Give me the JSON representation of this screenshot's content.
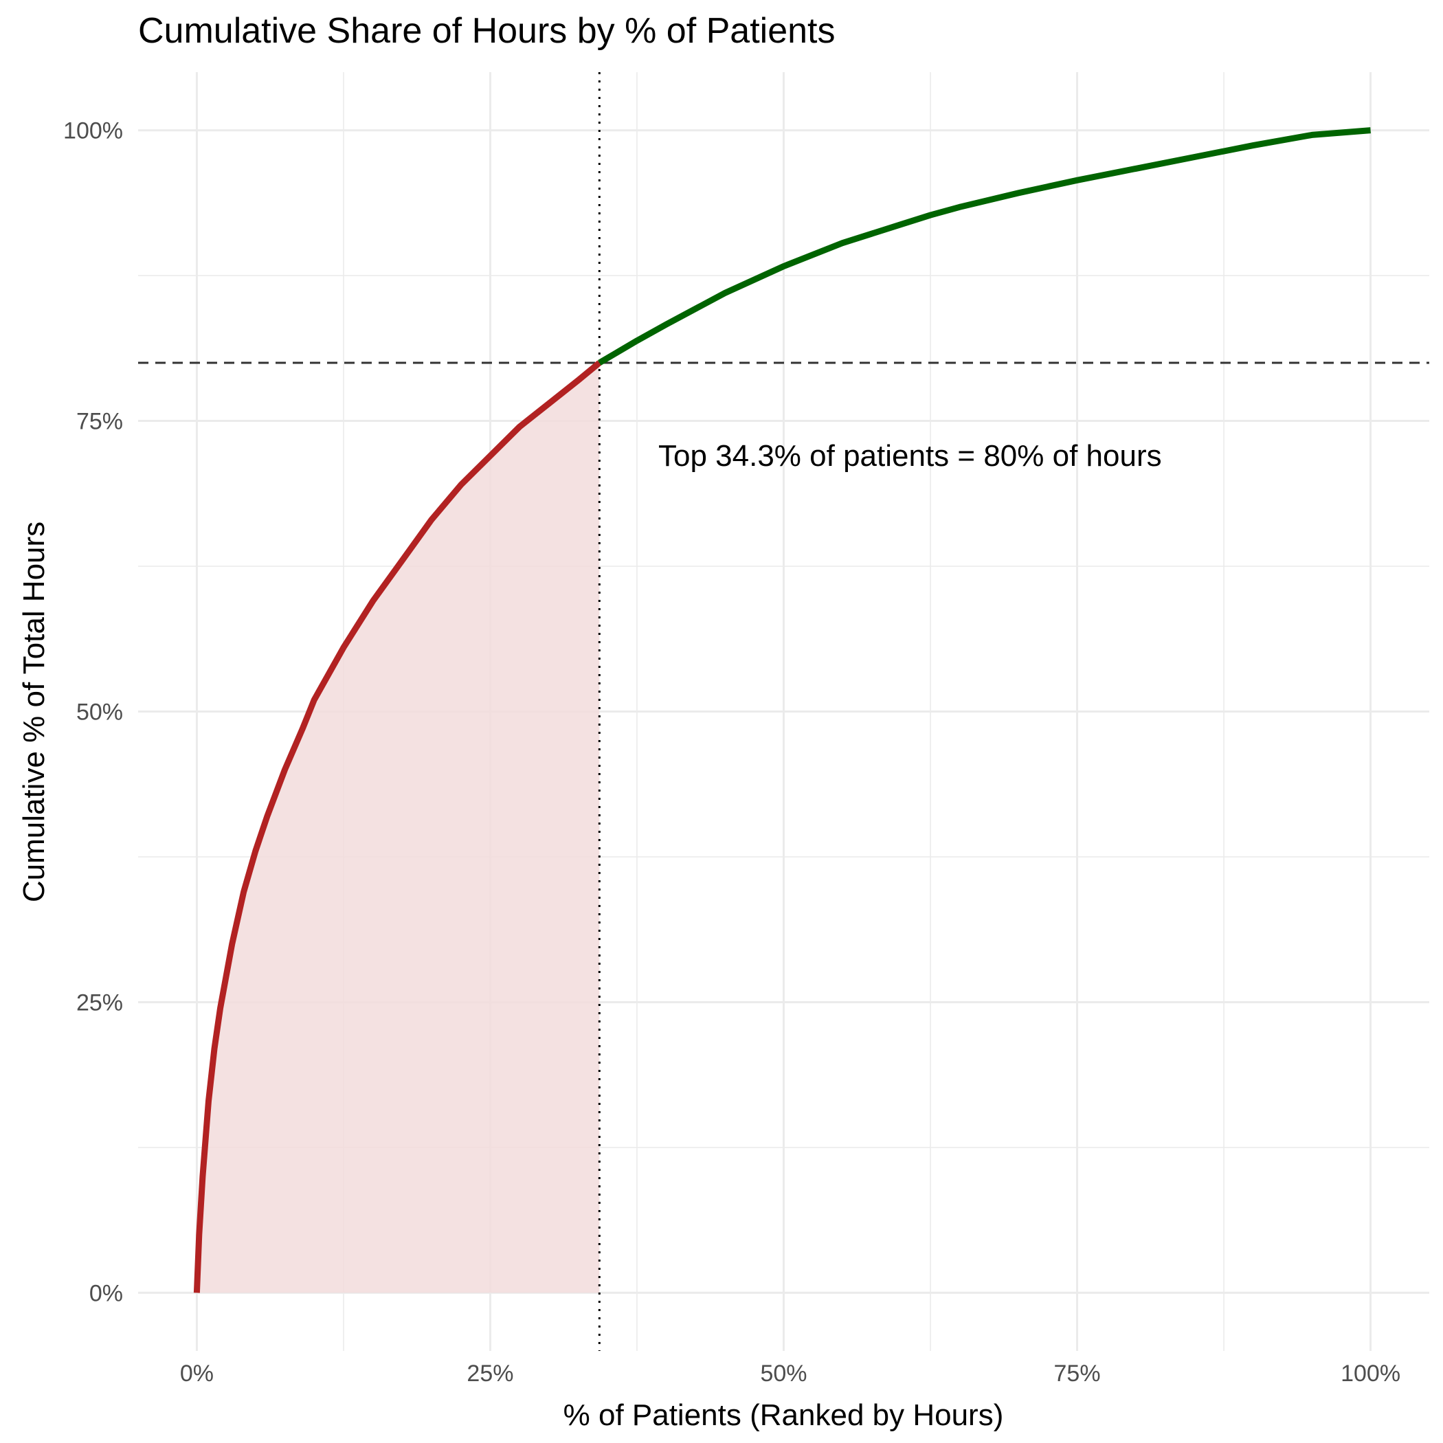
{
  "chart_data": {
    "type": "line",
    "title": "Cumulative Share of Hours by % of Patients",
    "xlabel": "% of Patients (Ranked by Hours)",
    "ylabel": "Cumulative % of Total Hours",
    "xlim": [
      -0.05,
      1.05
    ],
    "ylim": [
      -0.05,
      1.05
    ],
    "x_ticks": [
      0,
      0.25,
      0.5,
      0.75,
      1.0
    ],
    "x_tick_labels": [
      "0%",
      "25%",
      "50%",
      "75%",
      "100%"
    ],
    "y_ticks": [
      0,
      0.25,
      0.5,
      0.75,
      1.0
    ],
    "y_tick_labels": [
      "0%",
      "25%",
      "50%",
      "75%",
      "100%"
    ],
    "grid": true,
    "threshold": {
      "x": 0.343,
      "y": 0.8
    },
    "annotation": "Top 34.3% of patients = 80% of hours",
    "colors": {
      "below_threshold_line": "#b22222",
      "above_threshold_line": "#006400",
      "fill": "#f2dcdc",
      "grid": "#ebebeb",
      "reference_lines": "#333333"
    },
    "series": [
      {
        "x": [
          0,
          0.002,
          0.005,
          0.01,
          0.015,
          0.02,
          0.03,
          0.04,
          0.05,
          0.06,
          0.075,
          0.09,
          0.1,
          0.125,
          0.15,
          0.175,
          0.2,
          0.225,
          0.25,
          0.275,
          0.3,
          0.325,
          0.343,
          0.375,
          0.4,
          0.45,
          0.5,
          0.55,
          0.6,
          0.625,
          0.65,
          0.7,
          0.75,
          0.8,
          0.85,
          0.9,
          0.95,
          1.0
        ],
        "y": [
          0,
          0.05,
          0.1,
          0.165,
          0.21,
          0.245,
          0.3,
          0.345,
          0.38,
          0.41,
          0.45,
          0.485,
          0.51,
          0.555,
          0.595,
          0.63,
          0.665,
          0.695,
          0.72,
          0.745,
          0.765,
          0.785,
          0.8,
          0.819,
          0.833,
          0.86,
          0.883,
          0.903,
          0.919,
          0.927,
          0.934,
          0.946,
          0.957,
          0.967,
          0.977,
          0.987,
          0.996,
          1.0
        ]
      }
    ]
  }
}
